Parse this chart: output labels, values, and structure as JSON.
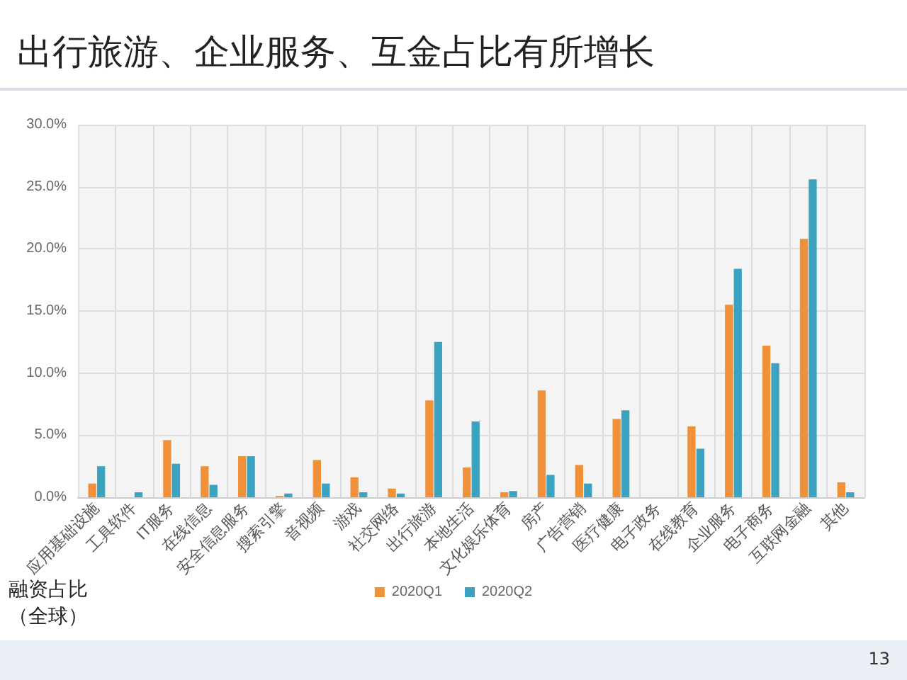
{
  "chart_data": {
    "type": "bar",
    "title": "出行旅游、企业服务、互金占比有所增长",
    "ylabel": "融资占比（全球）",
    "categories": [
      "应用基础设施",
      "工具软件",
      "IT服务",
      "在线信息",
      "安全信息服务",
      "搜索引擎",
      "音视频",
      "游戏",
      "社交网络",
      "出行旅游",
      "本地生活",
      "文化娱乐体育",
      "房产",
      "广告营销",
      "医疗健康",
      "电子政务",
      "在线教育",
      "企业服务",
      "电子商务",
      "互联网金融",
      "其他"
    ],
    "series": [
      {
        "name": "2020Q1",
        "color": "#f0913a",
        "values": [
          1.1,
          0,
          4.6,
          2.5,
          3.3,
          0.1,
          3.0,
          1.6,
          0.7,
          7.8,
          2.4,
          0.4,
          8.6,
          2.6,
          6.3,
          0,
          5.7,
          15.5,
          12.2,
          20.8,
          1.2
        ]
      },
      {
        "name": "2020Q2",
        "color": "#3ba3c0",
        "values": [
          2.5,
          0.4,
          2.7,
          1.0,
          3.3,
          0.3,
          1.1,
          0.4,
          0.3,
          12.5,
          6.1,
          0.5,
          1.8,
          1.1,
          7.0,
          0,
          3.9,
          18.4,
          10.8,
          25.6,
          0.4
        ]
      }
    ],
    "ylim": [
      0,
      30
    ],
    "yticks": [
      {
        "value": 0,
        "label": "0.0%"
      },
      {
        "value": 5,
        "label": "5.0%"
      },
      {
        "value": 10,
        "label": "10.0%"
      },
      {
        "value": 15,
        "label": "15.0%"
      },
      {
        "value": 20,
        "label": "20.0%"
      },
      {
        "value": 25,
        "label": "25.0%"
      },
      {
        "value": 30,
        "label": "30.0%"
      }
    ],
    "grid": true,
    "legend": "bottom",
    "annotations": [
      "13"
    ]
  }
}
